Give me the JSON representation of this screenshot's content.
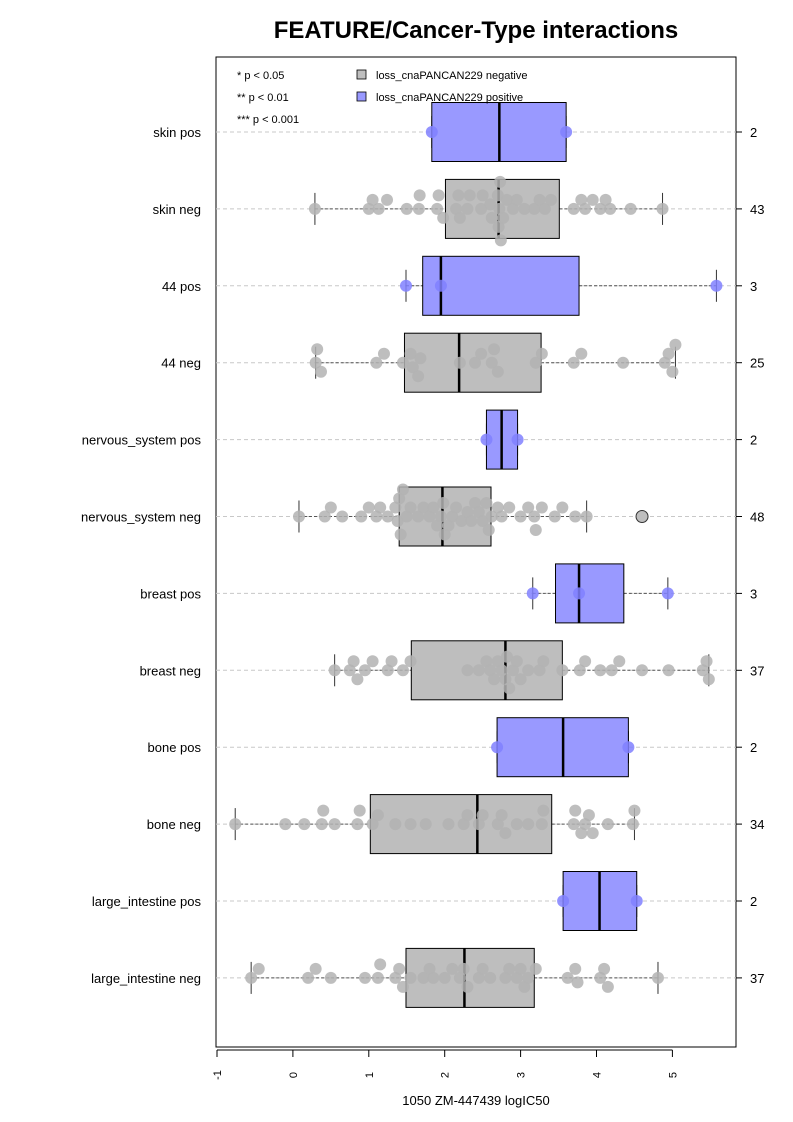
{
  "chart_data": {
    "type": "boxplot",
    "title": "FEATURE/Cancer-Type interactions",
    "xlabel": "1050 ZM-447439 logIC50",
    "ylabel": "",
    "xlim": [
      -1,
      5.85
    ],
    "x_ticks": [
      "-1",
      "0",
      "1",
      "2",
      "3",
      "4",
      "5"
    ],
    "orientation": "horizontal",
    "grid": "horizontal dashed lines",
    "significance_legend": [
      "* p < 0.05",
      "** p < 0.01",
      "*** p < 0.001"
    ],
    "legend": [
      {
        "label": "loss_cnaPANCAN229 negative",
        "color": "#bebebe"
      },
      {
        "label": "loss_cnaPANCAN229 positive",
        "color": "#9999ff"
      }
    ],
    "groups": [
      {
        "label": "skin pos",
        "n": "2",
        "status": "positive",
        "q1": 1.83,
        "median": 2.72,
        "q3": 3.6,
        "wlo": 1.83,
        "whi": 3.6,
        "points": [
          1.83,
          3.6
        ],
        "outliers": []
      },
      {
        "label": "skin neg",
        "n": "43",
        "status": "negative",
        "q1": 2.01,
        "median": 2.71,
        "q3": 3.51,
        "wlo": 0.29,
        "whi": 4.87,
        "points": [
          0.29,
          1.0,
          1.05,
          1.13,
          1.24,
          1.5,
          1.66,
          1.67,
          1.9,
          1.92,
          1.98,
          2.15,
          2.18,
          2.2,
          2.3,
          2.33,
          2.48,
          2.5,
          2.6,
          2.62,
          2.7,
          2.71,
          2.72,
          2.73,
          2.74,
          2.77,
          2.82,
          2.9,
          2.95,
          3.05,
          3.18,
          3.25,
          3.32,
          3.4,
          3.7,
          3.8,
          3.85,
          3.95,
          4.05,
          4.12,
          4.18,
          4.45,
          4.87
        ],
        "outliers": []
      },
      {
        "label": "44 pos",
        "n": "3",
        "status": "positive",
        "q1": 1.71,
        "median": 1.95,
        "q3": 3.77,
        "wlo": 1.49,
        "whi": 5.58,
        "points": [
          1.49,
          1.95,
          5.58
        ],
        "outliers": []
      },
      {
        "label": "44 neg",
        "n": "25",
        "status": "negative",
        "q1": 1.47,
        "median": 2.19,
        "q3": 3.27,
        "wlo": 0.3,
        "whi": 5.04,
        "points": [
          0.3,
          0.32,
          0.37,
          1.1,
          1.2,
          1.45,
          1.55,
          1.58,
          1.65,
          1.68,
          2.2,
          2.4,
          2.48,
          2.62,
          2.65,
          2.7,
          3.2,
          3.28,
          3.7,
          3.8,
          4.35,
          4.9,
          4.95,
          5.0,
          5.04
        ],
        "outliers": []
      },
      {
        "label": "nervous_system pos",
        "n": "2",
        "status": "positive",
        "q1": 2.55,
        "median": 2.75,
        "q3": 2.96,
        "wlo": 2.55,
        "whi": 2.96,
        "points": [
          2.55,
          2.96
        ],
        "outliers": []
      },
      {
        "label": "nervous_system neg",
        "n": "48",
        "status": "negative",
        "q1": 1.4,
        "median": 1.97,
        "q3": 2.61,
        "wlo": 0.08,
        "whi": 3.87,
        "points": [
          0.08,
          0.42,
          0.5,
          0.65,
          0.9,
          1.0,
          1.1,
          1.15,
          1.25,
          1.35,
          1.38,
          1.4,
          1.42,
          1.45,
          1.5,
          1.55,
          1.65,
          1.72,
          1.8,
          1.85,
          1.9,
          1.95,
          1.98,
          2.0,
          2.05,
          2.1,
          2.15,
          2.22,
          2.3,
          2.35,
          2.4,
          2.45,
          2.5,
          2.55,
          2.58,
          2.62,
          2.7,
          2.75,
          2.85,
          3.0,
          3.1,
          3.18,
          3.2,
          3.28,
          3.45,
          3.55,
          3.72,
          3.87
        ],
        "outliers": [
          4.6
        ]
      },
      {
        "label": "breast pos",
        "n": "3",
        "status": "positive",
        "q1": 3.46,
        "median": 3.77,
        "q3": 4.36,
        "wlo": 3.16,
        "whi": 4.94,
        "points": [
          3.16,
          3.77,
          4.94
        ],
        "outliers": []
      },
      {
        "label": "breast neg",
        "n": "37",
        "status": "negative",
        "q1": 1.56,
        "median": 2.8,
        "q3": 3.55,
        "wlo": 0.55,
        "whi": 5.48,
        "points": [
          0.55,
          0.75,
          0.8,
          0.85,
          0.95,
          1.05,
          1.25,
          1.3,
          1.45,
          1.55,
          2.3,
          2.45,
          2.55,
          2.6,
          2.65,
          2.7,
          2.75,
          2.8,
          2.82,
          2.85,
          2.9,
          2.95,
          3.0,
          3.1,
          3.25,
          3.3,
          3.55,
          3.78,
          3.85,
          4.05,
          4.2,
          4.3,
          4.6,
          4.95,
          5.4,
          5.45,
          5.48
        ],
        "outliers": []
      },
      {
        "label": "bone pos",
        "n": "2",
        "status": "positive",
        "q1": 2.69,
        "median": 3.56,
        "q3": 4.42,
        "wlo": 2.69,
        "whi": 4.42,
        "points": [
          2.69,
          4.42
        ],
        "outliers": []
      },
      {
        "label": "bone neg",
        "n": "34",
        "status": "negative",
        "q1": 1.02,
        "median": 2.43,
        "q3": 3.41,
        "wlo": -0.76,
        "whi": 4.5,
        "points": [
          -0.76,
          -0.1,
          0.15,
          0.38,
          0.4,
          0.55,
          0.85,
          0.88,
          1.05,
          1.12,
          1.35,
          1.55,
          1.75,
          2.05,
          2.25,
          2.3,
          2.45,
          2.5,
          2.7,
          2.75,
          2.8,
          2.95,
          3.1,
          3.28,
          3.3,
          3.7,
          3.72,
          3.8,
          3.85,
          3.9,
          3.95,
          4.15,
          4.48,
          4.5
        ],
        "outliers": []
      },
      {
        "label": "large_intestine pos",
        "n": "2",
        "status": "positive",
        "q1": 3.56,
        "median": 4.04,
        "q3": 4.53,
        "wlo": 3.56,
        "whi": 4.53,
        "points": [
          3.56,
          4.53
        ],
        "outliers": []
      },
      {
        "label": "large_intestine neg",
        "n": "37",
        "status": "negative",
        "q1": 1.49,
        "median": 2.26,
        "q3": 3.18,
        "wlo": -0.55,
        "whi": 4.81,
        "points": [
          -0.55,
          -0.45,
          0.2,
          0.3,
          0.5,
          0.95,
          1.12,
          1.15,
          1.35,
          1.4,
          1.45,
          1.55,
          1.72,
          1.8,
          1.85,
          2.0,
          2.1,
          2.2,
          2.25,
          2.3,
          2.45,
          2.5,
          2.6,
          2.8,
          2.85,
          2.95,
          3.0,
          3.05,
          3.1,
          3.2,
          3.62,
          3.72,
          3.75,
          4.05,
          4.1,
          4.15,
          4.81
        ],
        "outliers": []
      }
    ]
  }
}
